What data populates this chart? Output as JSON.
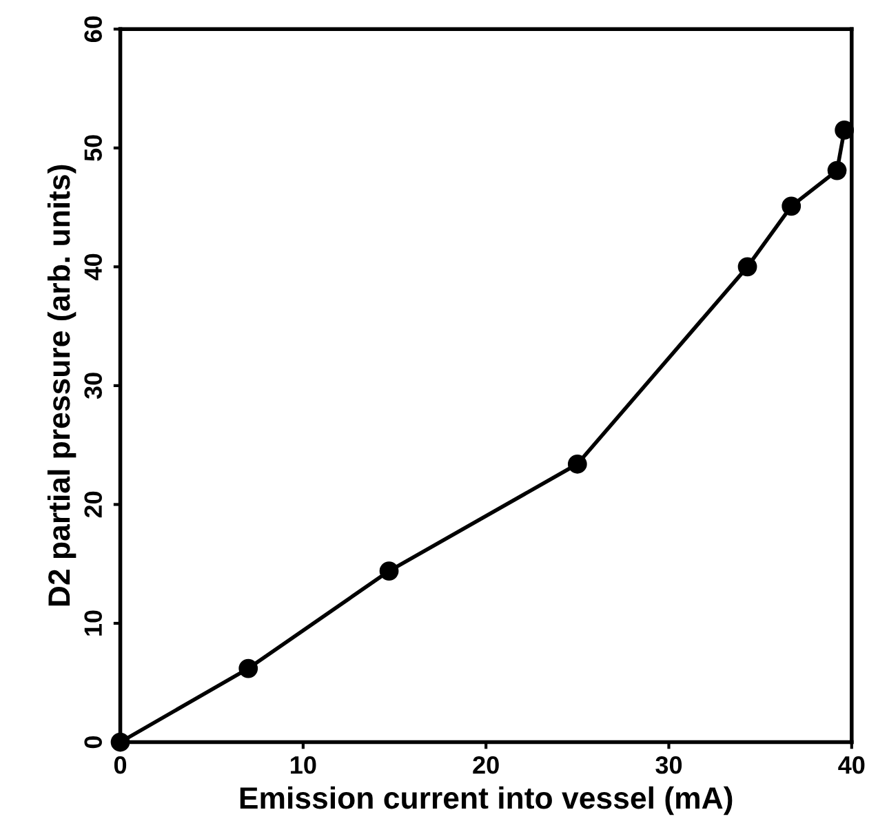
{
  "chart_data": {
    "type": "line",
    "xlabel": "Emission current into vessel (mA)",
    "ylabel": "D2 partial pressure (arb. units)",
    "x": [
      0,
      7.0,
      14.7,
      25.0,
      34.3,
      36.7,
      39.2,
      39.6
    ],
    "series": [
      {
        "color": "#000000",
        "values": [
          0,
          6.2,
          14.4,
          23.4,
          40.0,
          45.1,
          48.1,
          51.5
        ]
      }
    ],
    "xlim": [
      0,
      40
    ],
    "ylim": [
      0,
      60
    ],
    "xticks": [
      0,
      10,
      20,
      30,
      40
    ],
    "yticks": [
      0,
      10,
      20,
      30,
      40,
      50,
      60
    ],
    "marker": "circle",
    "line_style": "solid",
    "grid": false,
    "legend": false
  }
}
